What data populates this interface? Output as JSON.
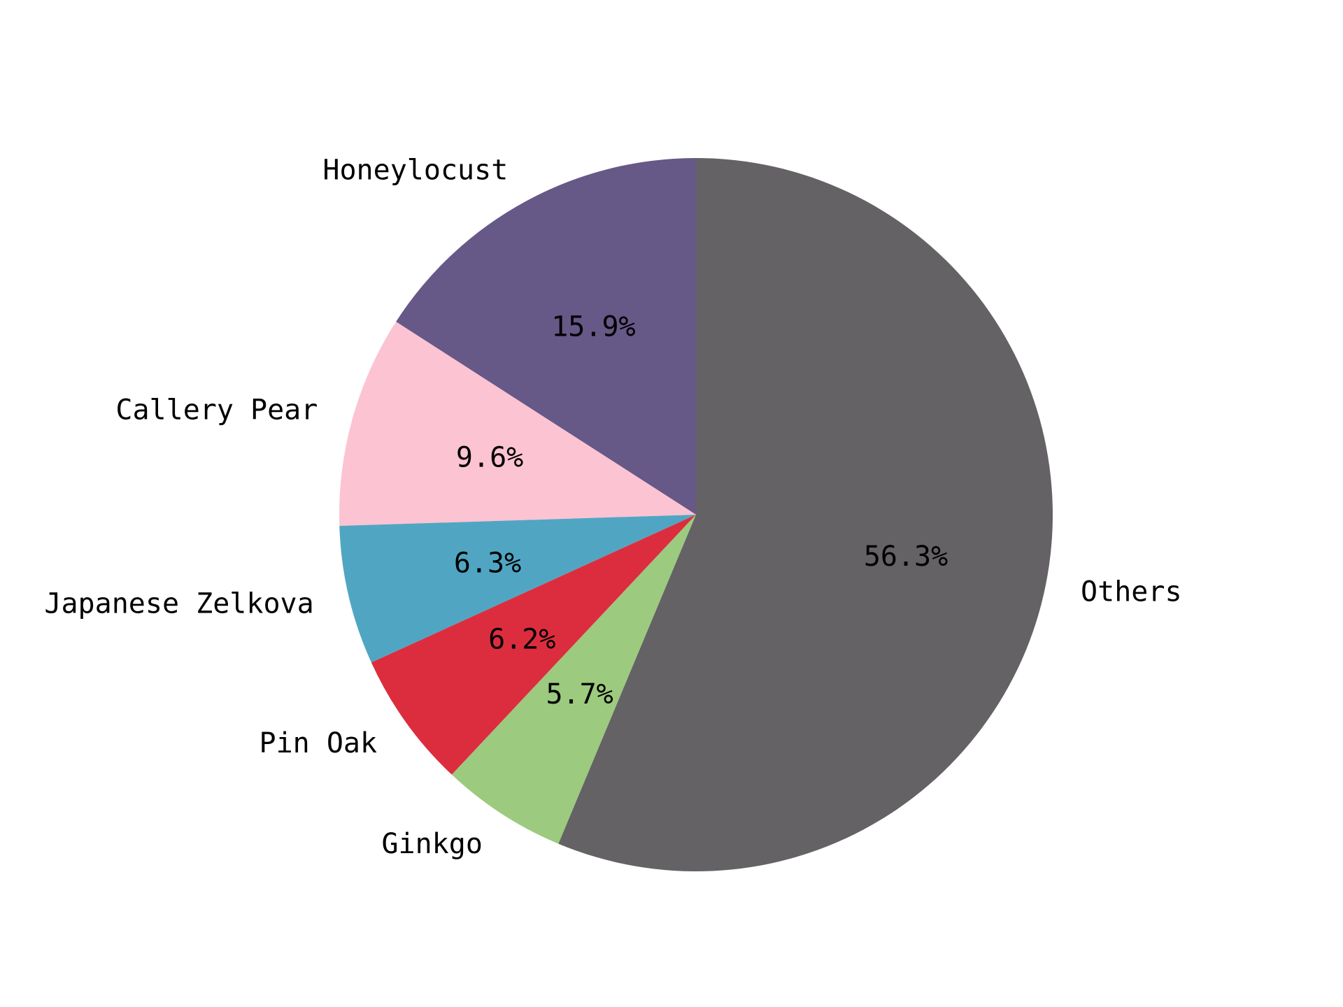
{
  "chart_data": {
    "type": "pie",
    "title": "",
    "start_angle_deg": 90,
    "direction": "counterclockwise",
    "slices": [
      {
        "label": "Honeylocust",
        "value": 15.9,
        "pct_label": "15.9%",
        "color": "#665887"
      },
      {
        "label": "Callery Pear",
        "value": 9.6,
        "pct_label": "9.6%",
        "color": "#fcc3d3"
      },
      {
        "label": "Japanese Zelkova",
        "value": 6.3,
        "pct_label": "6.3%",
        "color": "#50a6c2"
      },
      {
        "label": "Pin Oak",
        "value": 6.2,
        "pct_label": "6.2%",
        "color": "#dc2d3f"
      },
      {
        "label": "Ginkgo",
        "value": 5.7,
        "pct_label": "5.7%",
        "color": "#9cca7e"
      },
      {
        "label": "Others",
        "value": 56.3,
        "pct_label": "56.3%",
        "color": "#646265"
      }
    ]
  }
}
